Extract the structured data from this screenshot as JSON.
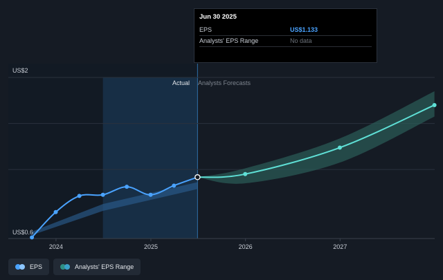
{
  "tooltip": {
    "date": "Jun 30 2025",
    "rows": [
      {
        "label": "EPS",
        "value": "US$1.133"
      },
      {
        "label": "Analysts' EPS Range",
        "value": "No data"
      }
    ]
  },
  "legend": {
    "items": [
      {
        "label": "EPS",
        "color": "#4aa3ff"
      },
      {
        "label": "Analysts' EPS Range",
        "color": "#2e8f84"
      }
    ]
  },
  "chart_data": {
    "type": "line",
    "y_top_label": "US$2",
    "y_bottom_label": "US$0.6",
    "ylim": [
      0.6,
      2.0
    ],
    "x_ticks": [
      "2024",
      "2025",
      "2026",
      "2027"
    ],
    "section_labels": {
      "actual": "Actual",
      "forecast": "Analysts Forecasts"
    },
    "colors": {
      "eps": "#4aa3ff",
      "forecast_line": "#5fe0d6",
      "forecast_band": "#2b5c58",
      "past_band": "#2a5b8c"
    },
    "series": [
      {
        "name": "EPS",
        "x": [
          "2023-09-30",
          "2023-12-31",
          "2024-03-31",
          "2024-06-30",
          "2024-09-30",
          "2024-12-31",
          "2025-03-31",
          "2025-06-30"
        ],
        "values": [
          0.61,
          0.83,
          0.97,
          0.98,
          1.05,
          0.98,
          1.06,
          1.133
        ]
      },
      {
        "name": "Analysts Forecasts",
        "x": [
          "2025-06-30",
          "2025-12-31",
          "2026-12-31",
          "2027-12-31"
        ],
        "values": [
          1.133,
          1.16,
          1.39,
          1.76
        ],
        "low": [
          1.133,
          1.08,
          1.26,
          1.66
        ],
        "high": [
          1.133,
          1.21,
          1.47,
          1.88
        ]
      },
      {
        "name": "Analysts' EPS Range (past)",
        "x": [
          "2023-09-30",
          "2024-06-30",
          "2025-06-30"
        ],
        "low": [
          0.63,
          0.84,
          1.03
        ],
        "high": [
          0.66,
          0.9,
          1.09
        ]
      }
    ]
  }
}
